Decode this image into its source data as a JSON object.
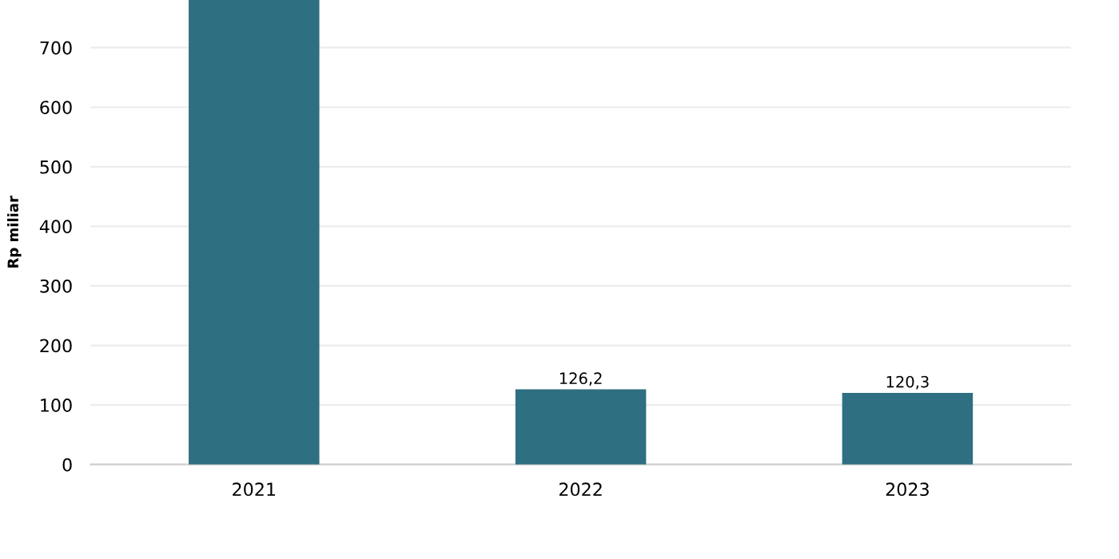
{
  "chart_data": {
    "type": "bar",
    "ylabel": "Rp miliar",
    "categories": [
      "2021",
      "2022",
      "2023"
    ],
    "values": [
      780,
      126.2,
      120.3
    ],
    "value_labels": [
      null,
      "126,2",
      "120,3"
    ],
    "color": "#2f6f82",
    "ylim": [
      0,
      780
    ],
    "yticks": [
      0,
      100,
      200,
      300,
      400,
      500,
      600,
      700
    ],
    "grid": "y",
    "legend": false
  }
}
